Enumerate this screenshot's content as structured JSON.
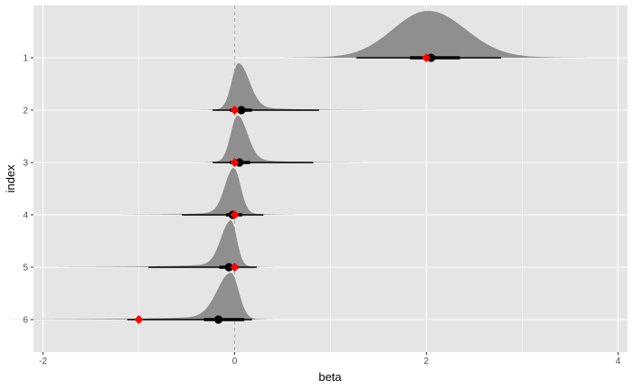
{
  "chart_data": {
    "type": "ridgeline",
    "xlabel": "beta",
    "ylabel": "index",
    "xlim": [
      -2.1,
      4.1
    ],
    "x_ticks": [
      -2,
      0,
      2,
      4
    ],
    "x_tick_labels": [
      "-2",
      "0",
      "2",
      "4"
    ],
    "y_tick_labels": [
      "1",
      "2",
      "3",
      "4",
      "5",
      "6"
    ],
    "reference_line_x": 0,
    "grid": true,
    "colors": {
      "panel": "#e5e5e5",
      "grid": "#ffffff",
      "density": "#8f8f8f",
      "interval": "#000000",
      "true_value": "#ff0000",
      "reference_line": "#a6a6a6"
    },
    "rows": [
      {
        "index": "1",
        "point": 2.05,
        "interval_66": [
          1.83,
          2.35
        ],
        "interval_95": [
          1.27,
          2.78
        ],
        "true_value": 2.0,
        "density": {
          "peak": 2.02,
          "sd_left": 0.36,
          "sd_right": 0.38,
          "tail_left": 1.1,
          "tail_right": 1.2
        }
      },
      {
        "index": "2",
        "point": 0.07,
        "interval_66": [
          -0.05,
          0.18
        ],
        "interval_95": [
          -0.23,
          0.88
        ],
        "true_value": 0.0,
        "density": {
          "peak": 0.04,
          "sd_left": 0.07,
          "sd_right": 0.11,
          "tail_left": 0.3,
          "tail_right": 1.0
        }
      },
      {
        "index": "3",
        "point": 0.05,
        "interval_66": [
          -0.05,
          0.16
        ],
        "interval_95": [
          -0.23,
          0.82
        ],
        "true_value": 0.0,
        "density": {
          "peak": 0.03,
          "sd_left": 0.07,
          "sd_right": 0.1,
          "tail_left": 0.3,
          "tail_right": 0.9
        }
      },
      {
        "index": "4",
        "point": -0.02,
        "interval_66": [
          -0.09,
          0.08
        ],
        "interval_95": [
          -0.55,
          0.3
        ],
        "true_value": 0.0,
        "density": {
          "peak": -0.01,
          "sd_left": 0.09,
          "sd_right": 0.07,
          "tail_left": 0.8,
          "tail_right": 0.4
        }
      },
      {
        "index": "5",
        "point": -0.06,
        "interval_66": [
          -0.16,
          0.04
        ],
        "interval_95": [
          -0.9,
          0.23
        ],
        "true_value": 0.0,
        "density": {
          "peak": -0.04,
          "sd_left": 0.1,
          "sd_right": 0.06,
          "tail_left": 1.3,
          "tail_right": 0.3
        }
      },
      {
        "index": "6",
        "point": -0.17,
        "interval_66": [
          -0.32,
          0.1
        ],
        "interval_95": [
          -1.12,
          0.18
        ],
        "true_value": -1.0,
        "density": {
          "peak": -0.04,
          "sd_left": 0.14,
          "sd_right": 0.08,
          "tail_left": 1.7,
          "tail_right": 0.3
        }
      }
    ]
  }
}
